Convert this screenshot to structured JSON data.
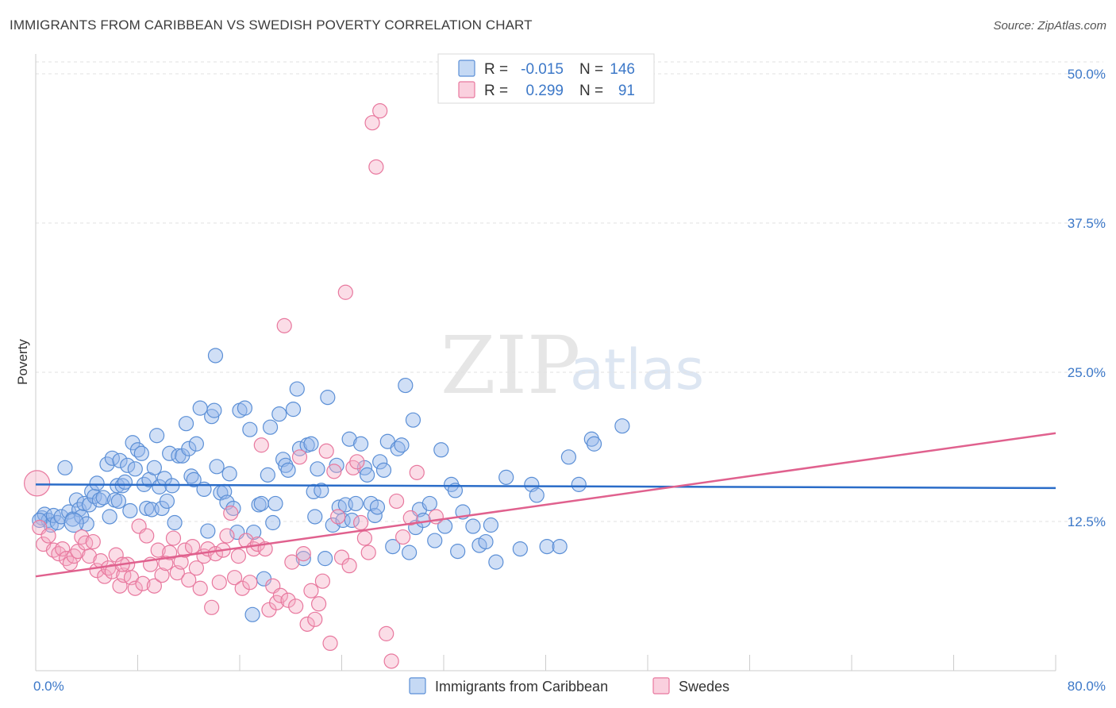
{
  "title": "IMMIGRANTS FROM CARIBBEAN VS SWEDISH POVERTY CORRELATION CHART",
  "source": "Source: ZipAtlas.com",
  "watermark": {
    "zip": "ZIP",
    "atlas": "atlas"
  },
  "legend_top": {
    "rows": [
      {
        "r_label": "R =",
        "r_value": "-0.015",
        "n_label": "N =",
        "n_value": "146",
        "color": "#5b8fd6"
      },
      {
        "r_label": "R =",
        "r_value": "0.299",
        "n_label": "N =",
        "n_value": "91",
        "color": "#e8789e"
      }
    ]
  },
  "legend_bottom": {
    "items": [
      {
        "label": "Immigrants from Caribbean",
        "color": "#5b8fd6"
      },
      {
        "label": "Swedes",
        "color": "#e8789e"
      }
    ]
  },
  "chart_data": {
    "type": "scatter",
    "ylabel": "Poverty",
    "xlim": [
      0,
      80
    ],
    "ylim": [
      0,
      51
    ],
    "x_tick_labels": [
      "0.0%",
      "80.0%"
    ],
    "y_ticks": [
      12.5,
      25.0,
      37.5,
      50.0
    ],
    "y_tick_labels": [
      "12.5%",
      "25.0%",
      "37.5%",
      "50.0%"
    ],
    "grid": true,
    "series": [
      {
        "name": "Immigrants from Caribbean",
        "color": "#5b8fd6",
        "trend": {
          "x": [
            0,
            80
          ],
          "y": [
            15.6,
            15.3
          ]
        },
        "points": [
          [
            0.5,
            12.8
          ],
          [
            0.7,
            13.1
          ],
          [
            1.0,
            12.6
          ],
          [
            1.2,
            12.2
          ],
          [
            1.4,
            13.0
          ],
          [
            1.7,
            12.4
          ],
          [
            2.0,
            12.9
          ],
          [
            2.3,
            17.0
          ],
          [
            2.6,
            13.3
          ],
          [
            2.9,
            12.7
          ],
          [
            3.2,
            14.3
          ],
          [
            3.4,
            13.5
          ],
          [
            3.6,
            12.9
          ],
          [
            3.8,
            14.0
          ],
          [
            4.0,
            12.3
          ],
          [
            4.2,
            13.9
          ],
          [
            4.4,
            15.0
          ],
          [
            4.6,
            14.6
          ],
          [
            4.8,
            15.7
          ],
          [
            5.0,
            14.3
          ],
          [
            5.3,
            14.5
          ],
          [
            5.6,
            17.3
          ],
          [
            5.8,
            12.9
          ],
          [
            6.0,
            17.8
          ],
          [
            6.2,
            14.3
          ],
          [
            6.4,
            15.5
          ],
          [
            6.6,
            17.6
          ],
          [
            6.8,
            15.5
          ],
          [
            7.0,
            15.8
          ],
          [
            7.2,
            17.2
          ],
          [
            7.4,
            13.4
          ],
          [
            7.6,
            19.1
          ],
          [
            7.8,
            16.9
          ],
          [
            8.0,
            18.5
          ],
          [
            8.3,
            18.2
          ],
          [
            8.5,
            15.6
          ],
          [
            8.7,
            13.6
          ],
          [
            8.9,
            16.0
          ],
          [
            9.1,
            13.5
          ],
          [
            9.3,
            17.0
          ],
          [
            9.5,
            19.7
          ],
          [
            9.7,
            15.4
          ],
          [
            9.9,
            13.6
          ],
          [
            10.1,
            16.1
          ],
          [
            10.3,
            14.2
          ],
          [
            10.5,
            18.2
          ],
          [
            10.7,
            15.5
          ],
          [
            10.9,
            12.4
          ],
          [
            11.2,
            18.0
          ],
          [
            11.5,
            18.0
          ],
          [
            11.8,
            20.7
          ],
          [
            12.0,
            18.6
          ],
          [
            12.2,
            16.3
          ],
          [
            12.4,
            16.0
          ],
          [
            12.6,
            19.0
          ],
          [
            12.9,
            22.0
          ],
          [
            13.2,
            15.2
          ],
          [
            13.5,
            11.7
          ],
          [
            13.8,
            21.3
          ],
          [
            14.0,
            21.8
          ],
          [
            14.2,
            17.1
          ],
          [
            14.5,
            14.9
          ],
          [
            14.8,
            15.0
          ],
          [
            15.0,
            14.1
          ],
          [
            15.2,
            16.5
          ],
          [
            15.5,
            13.6
          ],
          [
            15.8,
            11.6
          ],
          [
            16.0,
            21.8
          ],
          [
            16.4,
            22.0
          ],
          [
            16.8,
            20.2
          ],
          [
            17.1,
            11.6
          ],
          [
            17.5,
            13.9
          ],
          [
            17.7,
            14.0
          ],
          [
            17.9,
            7.7
          ],
          [
            18.2,
            16.4
          ],
          [
            18.4,
            20.4
          ],
          [
            18.6,
            12.4
          ],
          [
            18.8,
            14.0
          ],
          [
            19.1,
            21.5
          ],
          [
            19.4,
            17.7
          ],
          [
            19.6,
            17.2
          ],
          [
            19.8,
            16.8
          ],
          [
            20.2,
            21.9
          ],
          [
            20.5,
            23.6
          ],
          [
            20.7,
            18.6
          ],
          [
            21.0,
            9.4
          ],
          [
            21.3,
            18.9
          ],
          [
            21.6,
            19.0
          ],
          [
            21.8,
            15.0
          ],
          [
            22.1,
            16.9
          ],
          [
            22.4,
            15.1
          ],
          [
            22.7,
            9.4
          ],
          [
            22.9,
            22.9
          ],
          [
            23.3,
            12.2
          ],
          [
            23.6,
            17.2
          ],
          [
            23.8,
            13.7
          ],
          [
            24.1,
            12.6
          ],
          [
            24.3,
            13.9
          ],
          [
            24.6,
            19.4
          ],
          [
            24.8,
            12.6
          ],
          [
            25.1,
            14.0
          ],
          [
            25.5,
            19.0
          ],
          [
            25.8,
            17.0
          ],
          [
            26.0,
            16.4
          ],
          [
            26.3,
            14.0
          ],
          [
            26.6,
            13.0
          ],
          [
            26.8,
            13.7
          ],
          [
            27.0,
            17.5
          ],
          [
            27.3,
            16.8
          ],
          [
            27.6,
            19.2
          ],
          [
            28.0,
            10.4
          ],
          [
            28.4,
            18.6
          ],
          [
            28.7,
            18.9
          ],
          [
            29.0,
            23.9
          ],
          [
            29.3,
            9.9
          ],
          [
            29.6,
            21.0
          ],
          [
            29.8,
            12.0
          ],
          [
            30.1,
            13.5
          ],
          [
            30.4,
            12.6
          ],
          [
            30.9,
            14.0
          ],
          [
            31.3,
            10.9
          ],
          [
            31.8,
            18.5
          ],
          [
            32.1,
            12.1
          ],
          [
            32.6,
            15.6
          ],
          [
            32.9,
            15.1
          ],
          [
            33.1,
            10.0
          ],
          [
            33.5,
            13.3
          ],
          [
            34.3,
            12.1
          ],
          [
            34.8,
            10.5
          ],
          [
            35.3,
            10.8
          ],
          [
            35.7,
            12.2
          ],
          [
            36.1,
            9.1
          ],
          [
            36.9,
            16.2
          ],
          [
            38.0,
            10.2
          ],
          [
            38.9,
            15.6
          ],
          [
            39.3,
            14.7
          ],
          [
            40.1,
            10.4
          ],
          [
            41.1,
            10.4
          ],
          [
            41.8,
            17.9
          ],
          [
            42.6,
            15.6
          ],
          [
            43.6,
            19.4
          ],
          [
            43.8,
            19.0
          ],
          [
            46.0,
            20.5
          ],
          [
            0.3,
            12.6
          ],
          [
            3.0,
            12.4
          ],
          [
            6.5,
            14.2
          ],
          [
            17.0,
            4.7
          ],
          [
            14.1,
            26.4
          ],
          [
            21.9,
            12.9
          ]
        ]
      },
      {
        "name": "Swedes",
        "color": "#e8789e",
        "trend": {
          "x": [
            0,
            80
          ],
          "y": [
            7.9,
            19.9
          ]
        },
        "points": [
          [
            0.3,
            12.0
          ],
          [
            0.6,
            10.6
          ],
          [
            1.0,
            11.3
          ],
          [
            1.4,
            10.1
          ],
          [
            1.8,
            9.8
          ],
          [
            2.1,
            10.2
          ],
          [
            2.4,
            9.4
          ],
          [
            2.7,
            9.0
          ],
          [
            3.0,
            9.6
          ],
          [
            3.3,
            10.0
          ],
          [
            3.6,
            11.2
          ],
          [
            3.9,
            10.7
          ],
          [
            4.2,
            9.6
          ],
          [
            4.5,
            10.8
          ],
          [
            4.8,
            8.4
          ],
          [
            5.1,
            9.2
          ],
          [
            5.4,
            7.9
          ],
          [
            5.7,
            8.6
          ],
          [
            6.0,
            8.3
          ],
          [
            6.3,
            9.7
          ],
          [
            6.6,
            7.1
          ],
          [
            6.9,
            8.0
          ],
          [
            7.2,
            8.9
          ],
          [
            7.5,
            7.8
          ],
          [
            7.8,
            6.9
          ],
          [
            8.1,
            12.1
          ],
          [
            8.4,
            7.3
          ],
          [
            8.7,
            11.3
          ],
          [
            9.0,
            8.9
          ],
          [
            9.3,
            7.1
          ],
          [
            9.6,
            10.1
          ],
          [
            9.9,
            8.0
          ],
          [
            10.2,
            9.0
          ],
          [
            10.5,
            9.9
          ],
          [
            10.8,
            11.1
          ],
          [
            11.1,
            8.2
          ],
          [
            11.4,
            9.1
          ],
          [
            11.7,
            10.1
          ],
          [
            12.0,
            7.6
          ],
          [
            12.3,
            10.4
          ],
          [
            12.6,
            8.6
          ],
          [
            12.9,
            6.9
          ],
          [
            13.2,
            9.6
          ],
          [
            13.5,
            10.2
          ],
          [
            13.8,
            5.3
          ],
          [
            14.1,
            9.8
          ],
          [
            14.4,
            7.4
          ],
          [
            14.7,
            10.1
          ],
          [
            15.0,
            11.3
          ],
          [
            15.3,
            13.2
          ],
          [
            15.6,
            7.8
          ],
          [
            15.9,
            9.6
          ],
          [
            16.2,
            6.9
          ],
          [
            16.5,
            10.9
          ],
          [
            16.8,
            7.4
          ],
          [
            17.1,
            10.2
          ],
          [
            17.4,
            10.6
          ],
          [
            17.7,
            18.9
          ],
          [
            18.0,
            10.2
          ],
          [
            18.3,
            5.1
          ],
          [
            18.6,
            7.1
          ],
          [
            18.9,
            5.7
          ],
          [
            19.2,
            6.3
          ],
          [
            19.5,
            28.9
          ],
          [
            19.8,
            5.9
          ],
          [
            20.1,
            9.1
          ],
          [
            20.4,
            5.4
          ],
          [
            20.7,
            17.9
          ],
          [
            21.0,
            9.8
          ],
          [
            21.3,
            3.9
          ],
          [
            21.6,
            6.7
          ],
          [
            21.9,
            4.3
          ],
          [
            22.2,
            5.6
          ],
          [
            22.5,
            7.5
          ],
          [
            22.8,
            18.4
          ],
          [
            23.1,
            2.3
          ],
          [
            23.4,
            16.7
          ],
          [
            23.7,
            12.9
          ],
          [
            24.0,
            9.5
          ],
          [
            24.3,
            31.7
          ],
          [
            24.6,
            8.8
          ],
          [
            24.9,
            17.0
          ],
          [
            25.2,
            17.5
          ],
          [
            25.5,
            12.4
          ],
          [
            25.8,
            11.1
          ],
          [
            26.1,
            9.9
          ],
          [
            26.4,
            45.9
          ],
          [
            26.7,
            42.2
          ],
          [
            27.0,
            46.9
          ],
          [
            27.5,
            3.1
          ],
          [
            27.9,
            0.8
          ],
          [
            28.3,
            14.2
          ],
          [
            28.8,
            11.2
          ],
          [
            29.4,
            12.8
          ],
          [
            29.9,
            16.6
          ],
          [
            31.4,
            12.9
          ],
          [
            6.8,
            8.9
          ],
          [
            0.1,
            15.7
          ]
        ]
      }
    ]
  }
}
